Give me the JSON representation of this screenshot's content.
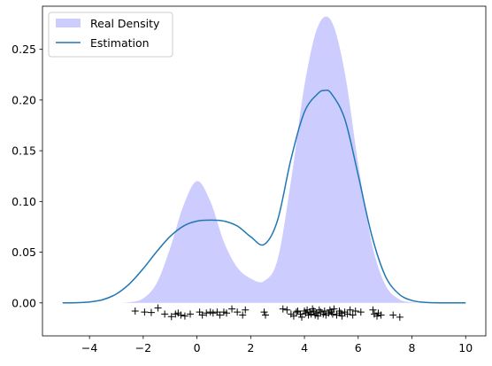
{
  "chart_data": {
    "type": "area",
    "title": "",
    "xlabel": "",
    "ylabel": "",
    "xlim": [
      -5.75,
      10.75
    ],
    "ylim": [
      -0.0325,
      0.2925
    ],
    "x_ticks": [
      -4,
      -2,
      0,
      2,
      4,
      6,
      8,
      10
    ],
    "x_tick_labels": [
      "−4",
      "−2",
      "0",
      "2",
      "4",
      "6",
      "8",
      "10"
    ],
    "y_ticks": [
      0.0,
      0.05,
      0.1,
      0.15,
      0.2,
      0.25
    ],
    "y_tick_labels": [
      "0.00",
      "0.05",
      "0.10",
      "0.15",
      "0.20",
      "0.25"
    ],
    "grid": false,
    "legend_position": "upper-left",
    "legend": {
      "items": [
        {
          "label": "Real Density",
          "kind": "patch",
          "color": "#ccccff"
        },
        {
          "label": "Estimation",
          "kind": "line",
          "color": "#1f77b4"
        }
      ]
    },
    "series": [
      {
        "name": "Real Density",
        "kind": "filled_area",
        "color": "#ccccff",
        "x": [
          -5.0,
          -4.5,
          -4.0,
          -3.5,
          -3.0,
          -2.5,
          -2.0,
          -1.5,
          -1.0,
          -0.5,
          0.0,
          0.5,
          1.0,
          1.5,
          2.0,
          2.5,
          3.0,
          3.5,
          4.0,
          4.5,
          5.0,
          5.5,
          6.0,
          6.5,
          7.0,
          7.5,
          8.0,
          8.5,
          9.0,
          9.5,
          10.0
        ],
        "y": [
          0.0,
          0.0,
          0.0,
          0.0,
          0.0001,
          0.0007,
          0.0044,
          0.0194,
          0.0538,
          0.0961,
          0.12,
          0.1001,
          0.0603,
          0.035,
          0.0241,
          0.0216,
          0.0427,
          0.1204,
          0.2142,
          0.2724,
          0.278,
          0.2272,
          0.1374,
          0.0597,
          0.0184,
          0.004,
          0.0006,
          0.0001,
          0.0,
          0.0,
          0.0
        ]
      },
      {
        "name": "Estimation",
        "kind": "line",
        "color": "#1f77b4",
        "x": [
          -5.0,
          -4.5,
          -4.0,
          -3.5,
          -3.0,
          -2.5,
          -2.0,
          -1.5,
          -1.0,
          -0.5,
          0.0,
          0.5,
          1.0,
          1.5,
          2.0,
          2.5,
          3.0,
          3.5,
          4.0,
          4.5,
          4.75,
          5.0,
          5.5,
          6.0,
          6.5,
          7.0,
          7.5,
          8.0,
          8.5,
          9.0,
          9.5,
          10.0
        ],
        "y": [
          0.0,
          0.0002,
          0.0009,
          0.0032,
          0.0088,
          0.0191,
          0.0338,
          0.0505,
          0.0655,
          0.0758,
          0.0806,
          0.0816,
          0.0807,
          0.0758,
          0.0652,
          0.0576,
          0.0815,
          0.1418,
          0.1882,
          0.2063,
          0.2094,
          0.2064,
          0.1814,
          0.126,
          0.0671,
          0.0271,
          0.0091,
          0.0024,
          0.0005,
          0.0001,
          0.0,
          0.0
        ]
      },
      {
        "name": "",
        "kind": "markers",
        "marker": "+",
        "color": "#000000",
        "x": [
          -2.3,
          -1.95,
          -1.7,
          -1.45,
          -1.2,
          -0.95,
          -0.8,
          -0.7,
          -0.6,
          -0.45,
          -0.25,
          0.1,
          0.2,
          0.35,
          0.5,
          0.6,
          0.75,
          0.85,
          1.0,
          1.1,
          1.3,
          1.5,
          1.7,
          1.8,
          2.5,
          2.55,
          3.2,
          3.35,
          3.5,
          3.6,
          3.7,
          3.75,
          3.85,
          3.9,
          4.0,
          4.05,
          4.1,
          4.15,
          4.2,
          4.25,
          4.3,
          4.35,
          4.4,
          4.45,
          4.5,
          4.55,
          4.6,
          4.7,
          4.75,
          4.8,
          4.9,
          4.95,
          5.0,
          5.05,
          5.1,
          5.2,
          5.3,
          5.35,
          5.4,
          5.5,
          5.6,
          5.7,
          5.8,
          5.9,
          6.1,
          6.55,
          6.6,
          6.7,
          6.75,
          6.85,
          7.3,
          7.55
        ],
        "y": [
          -0.008,
          -0.009,
          -0.0095,
          -0.005,
          -0.011,
          -0.0135,
          -0.011,
          -0.01,
          -0.012,
          -0.013,
          -0.011,
          -0.009,
          -0.012,
          -0.01,
          -0.009,
          -0.01,
          -0.009,
          -0.012,
          -0.009,
          -0.01,
          -0.006,
          -0.009,
          -0.012,
          -0.007,
          -0.009,
          -0.012,
          -0.006,
          -0.007,
          -0.011,
          -0.013,
          -0.009,
          -0.008,
          -0.011,
          -0.014,
          -0.008,
          -0.01,
          -0.007,
          -0.012,
          -0.009,
          -0.011,
          -0.006,
          -0.008,
          -0.012,
          -0.01,
          -0.013,
          -0.007,
          -0.009,
          -0.011,
          -0.008,
          -0.012,
          -0.01,
          -0.007,
          -0.009,
          -0.011,
          -0.006,
          -0.012,
          -0.008,
          -0.01,
          -0.013,
          -0.009,
          -0.011,
          -0.007,
          -0.012,
          -0.008,
          -0.009,
          -0.007,
          -0.011,
          -0.013,
          -0.01,
          -0.012,
          -0.012,
          -0.014
        ]
      }
    ]
  }
}
